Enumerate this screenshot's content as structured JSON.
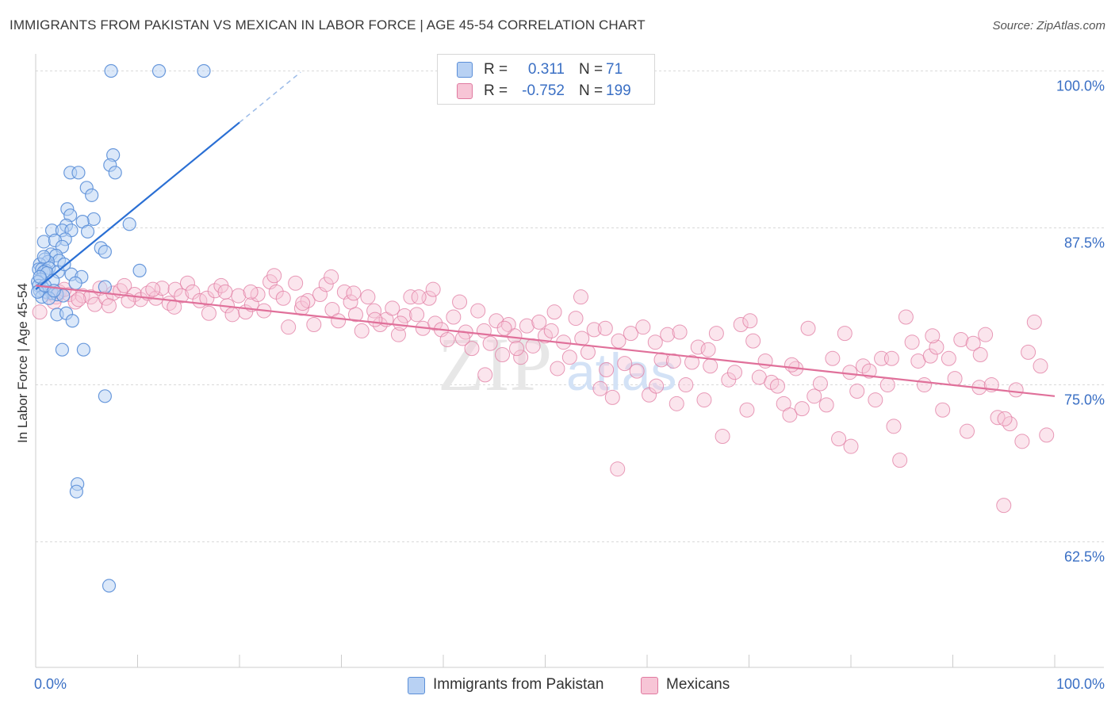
{
  "title": "IMMIGRANTS FROM PAKISTAN VS MEXICAN IN LABOR FORCE | AGE 45-54 CORRELATION CHART",
  "source": "Source: ZipAtlas.com",
  "watermark": {
    "zip": "ZIP",
    "atlas": "atlas"
  },
  "colors": {
    "blue": "#5b8fd8",
    "blue_fill": "#b8d1f3",
    "blue_line": "#2a6fd4",
    "pink": "#e07aa0",
    "pink_fill": "#f7c5d6",
    "pink_line": "#e0709a",
    "tick_label": "#3a6fc4",
    "grid": "#d9d9d9"
  },
  "legend": {
    "rows": [
      {
        "series": "blue",
        "r_label": "R =",
        "r_value": "0.311",
        "n_label": "N =",
        "n_value": "71"
      },
      {
        "series": "pink",
        "r_label": "R =",
        "r_value": "-0.752",
        "n_label": "N =",
        "n_value": "199"
      }
    ]
  },
  "bottom_legend": [
    {
      "series": "blue",
      "label": "Immigrants from Pakistan"
    },
    {
      "series": "pink",
      "label": "Mexicans"
    }
  ],
  "chart_data": {
    "type": "scatter",
    "title": "IMMIGRANTS FROM PAKISTAN VS MEXICAN IN LABOR FORCE | AGE 45-54 CORRELATION CHART",
    "xlabel": "",
    "ylabel": "In Labor Force | Age 45-54",
    "xlim": [
      0,
      100
    ],
    "ylim": [
      52.5,
      100.6
    ],
    "x_tick_labels": [
      "0.0%",
      "100.0%"
    ],
    "y_ticks": [
      100,
      87.5,
      75,
      62.5
    ],
    "y_tick_labels": [
      "100.0%",
      "87.5%",
      "75.0%",
      "62.5%"
    ],
    "series": [
      {
        "name": "Immigrants from Pakistan",
        "color": "blue",
        "r": 0.311,
        "n": 71,
        "trend": {
          "x": [
            0,
            20
          ],
          "y": [
            82.6,
            95.9
          ],
          "dashed_to": [
            26,
            99.9
          ]
        },
        "points": [
          [
            7.4,
            100
          ],
          [
            12.1,
            100
          ],
          [
            16.5,
            100
          ],
          [
            7.6,
            93.3
          ],
          [
            7.3,
            92.5
          ],
          [
            7.8,
            91.9
          ],
          [
            3.4,
            91.9
          ],
          [
            4.2,
            91.9
          ],
          [
            5.0,
            90.7
          ],
          [
            5.5,
            90.1
          ],
          [
            3.1,
            89.0
          ],
          [
            3.4,
            88.5
          ],
          [
            5.7,
            88.2
          ],
          [
            4.6,
            88.0
          ],
          [
            3.0,
            87.7
          ],
          [
            9.2,
            87.8
          ],
          [
            1.6,
            87.3
          ],
          [
            2.6,
            87.3
          ],
          [
            3.5,
            87.3
          ],
          [
            5.1,
            87.2
          ],
          [
            2.9,
            86.6
          ],
          [
            0.8,
            86.4
          ],
          [
            1.9,
            86.5
          ],
          [
            6.4,
            85.9
          ],
          [
            6.8,
            85.6
          ],
          [
            2.6,
            86.0
          ],
          [
            1.5,
            85.4
          ],
          [
            2.0,
            85.3
          ],
          [
            0.9,
            85.0
          ],
          [
            2.3,
            84.9
          ],
          [
            1.2,
            84.8
          ],
          [
            0.4,
            84.6
          ],
          [
            0.3,
            84.2
          ],
          [
            0.6,
            84.2
          ],
          [
            1.0,
            84.1
          ],
          [
            1.3,
            84.3
          ],
          [
            0.8,
            84.0
          ],
          [
            1.1,
            83.9
          ],
          [
            2.2,
            84.0
          ],
          [
            10.2,
            84.1
          ],
          [
            3.5,
            83.8
          ],
          [
            4.5,
            83.6
          ],
          [
            0.5,
            83.4
          ],
          [
            1.7,
            83.3
          ],
          [
            0.2,
            83.2
          ],
          [
            3.9,
            83.1
          ],
          [
            0.3,
            82.9
          ],
          [
            0.7,
            82.7
          ],
          [
            0.4,
            82.5
          ],
          [
            1.0,
            82.4
          ],
          [
            1.6,
            82.3
          ],
          [
            2.1,
            82.2
          ],
          [
            2.7,
            82.1
          ],
          [
            0.6,
            82.0
          ],
          [
            1.3,
            81.9
          ],
          [
            6.8,
            82.8
          ],
          [
            0.2,
            82.4
          ],
          [
            0.9,
            82.9
          ],
          [
            1.8,
            82.5
          ],
          [
            2.1,
            80.6
          ],
          [
            3.0,
            80.7
          ],
          [
            3.6,
            80.1
          ],
          [
            2.6,
            77.8
          ],
          [
            4.7,
            77.8
          ],
          [
            6.8,
            74.1
          ],
          [
            4.1,
            67.1
          ],
          [
            4.0,
            66.5
          ],
          [
            7.2,
            59.0
          ],
          [
            0.4,
            83.6
          ],
          [
            0.8,
            85.2
          ],
          [
            2.8,
            84.6
          ]
        ]
      },
      {
        "name": "Mexicans",
        "color": "pink",
        "r": -0.752,
        "n": 199,
        "trend": {
          "x": [
            0,
            100
          ],
          "y": [
            82.9,
            74.1
          ]
        },
        "points": [
          [
            0.4,
            80.8
          ],
          [
            1.3,
            82.3
          ],
          [
            2.0,
            82.0
          ],
          [
            2.3,
            82.4
          ],
          [
            3.3,
            82.2
          ],
          [
            3.9,
            81.6
          ],
          [
            4.6,
            82.1
          ],
          [
            5.4,
            82.0
          ],
          [
            5.8,
            81.4
          ],
          [
            6.3,
            82.7
          ],
          [
            6.9,
            81.9
          ],
          [
            7.6,
            82.3
          ],
          [
            8.3,
            82.5
          ],
          [
            8.7,
            82.9
          ],
          [
            9.7,
            82.2
          ],
          [
            10.3,
            81.8
          ],
          [
            11.0,
            82.3
          ],
          [
            11.8,
            81.9
          ],
          [
            12.4,
            82.7
          ],
          [
            13.1,
            81.5
          ],
          [
            13.7,
            82.6
          ],
          [
            14.3,
            82.1
          ],
          [
            14.9,
            83.1
          ],
          [
            15.4,
            82.4
          ],
          [
            16.1,
            81.7
          ],
          [
            16.8,
            81.9
          ],
          [
            17.0,
            80.7
          ],
          [
            17.6,
            82.5
          ],
          [
            18.2,
            82.9
          ],
          [
            18.8,
            81.3
          ],
          [
            19.3,
            80.6
          ],
          [
            19.9,
            82.1
          ],
          [
            20.6,
            80.8
          ],
          [
            21.2,
            81.4
          ],
          [
            21.8,
            82.2
          ],
          [
            22.4,
            80.9
          ],
          [
            23.0,
            83.2
          ],
          [
            23.6,
            82.4
          ],
          [
            24.3,
            81.9
          ],
          [
            24.8,
            79.6
          ],
          [
            25.5,
            83.1
          ],
          [
            26.1,
            81.1
          ],
          [
            26.7,
            81.7
          ],
          [
            27.3,
            79.8
          ],
          [
            27.9,
            82.2
          ],
          [
            28.5,
            83.0
          ],
          [
            29.1,
            81.0
          ],
          [
            29.7,
            80.1
          ],
          [
            30.3,
            82.4
          ],
          [
            30.9,
            81.6
          ],
          [
            31.4,
            80.6
          ],
          [
            32.0,
            79.3
          ],
          [
            32.6,
            82.0
          ],
          [
            33.2,
            80.9
          ],
          [
            33.8,
            79.8
          ],
          [
            34.4,
            80.2
          ],
          [
            35.0,
            81.1
          ],
          [
            35.6,
            79.0
          ],
          [
            36.2,
            80.5
          ],
          [
            36.8,
            82.0
          ],
          [
            37.4,
            80.6
          ],
          [
            38.0,
            79.5
          ],
          [
            38.6,
            81.9
          ],
          [
            39.2,
            79.9
          ],
          [
            39.8,
            79.4
          ],
          [
            40.4,
            78.6
          ],
          [
            41.0,
            80.4
          ],
          [
            41.6,
            81.6
          ],
          [
            42.2,
            79.2
          ],
          [
            42.8,
            77.9
          ],
          [
            43.4,
            80.9
          ],
          [
            44.0,
            79.3
          ],
          [
            44.6,
            78.3
          ],
          [
            45.2,
            80.1
          ],
          [
            45.8,
            77.4
          ],
          [
            46.4,
            79.8
          ],
          [
            47.0,
            78.9
          ],
          [
            47.6,
            77.2
          ],
          [
            48.2,
            79.7
          ],
          [
            48.8,
            78.1
          ],
          [
            49.4,
            80.0
          ],
          [
            50.0,
            78.9
          ],
          [
            50.6,
            79.3
          ],
          [
            51.2,
            76.3
          ],
          [
            51.8,
            78.4
          ],
          [
            52.4,
            77.2
          ],
          [
            53.0,
            80.3
          ],
          [
            53.6,
            78.7
          ],
          [
            54.2,
            77.6
          ],
          [
            54.8,
            79.4
          ],
          [
            55.4,
            74.7
          ],
          [
            56.0,
            76.2
          ],
          [
            56.6,
            74.0
          ],
          [
            57.2,
            78.5
          ],
          [
            57.8,
            76.7
          ],
          [
            58.4,
            79.1
          ],
          [
            59.0,
            76.1
          ],
          [
            59.6,
            79.6
          ],
          [
            60.2,
            74.2
          ],
          [
            60.8,
            78.4
          ],
          [
            61.4,
            77.0
          ],
          [
            62.0,
            79.0
          ],
          [
            62.6,
            76.9
          ],
          [
            63.2,
            79.2
          ],
          [
            63.8,
            75.0
          ],
          [
            64.4,
            76.8
          ],
          [
            65.0,
            78.0
          ],
          [
            65.6,
            73.8
          ],
          [
            66.2,
            76.5
          ],
          [
            66.8,
            79.1
          ],
          [
            67.4,
            70.9
          ],
          [
            68.0,
            75.4
          ],
          [
            68.6,
            76.0
          ],
          [
            69.2,
            79.8
          ],
          [
            69.8,
            73.0
          ],
          [
            70.4,
            78.5
          ],
          [
            71.0,
            75.6
          ],
          [
            71.6,
            76.9
          ],
          [
            72.2,
            75.2
          ],
          [
            72.8,
            74.9
          ],
          [
            73.4,
            73.5
          ],
          [
            74.0,
            72.6
          ],
          [
            74.6,
            76.3
          ],
          [
            75.2,
            73.1
          ],
          [
            75.8,
            79.5
          ],
          [
            76.4,
            74.1
          ],
          [
            77.0,
            75.1
          ],
          [
            77.6,
            73.4
          ],
          [
            78.2,
            77.1
          ],
          [
            78.8,
            70.7
          ],
          [
            79.4,
            79.1
          ],
          [
            80.0,
            70.1
          ],
          [
            80.6,
            74.5
          ],
          [
            81.2,
            76.5
          ],
          [
            81.8,
            76.1
          ],
          [
            82.4,
            73.8
          ],
          [
            83.0,
            77.1
          ],
          [
            83.6,
            75.0
          ],
          [
            84.2,
            71.7
          ],
          [
            84.8,
            69.0
          ],
          [
            85.4,
            80.4
          ],
          [
            86.0,
            78.4
          ],
          [
            86.6,
            76.9
          ],
          [
            87.2,
            75.0
          ],
          [
            87.8,
            77.3
          ],
          [
            88.4,
            78.0
          ],
          [
            89.0,
            73.0
          ],
          [
            89.6,
            77.1
          ],
          [
            90.2,
            75.5
          ],
          [
            90.8,
            78.6
          ],
          [
            91.4,
            71.3
          ],
          [
            92.0,
            78.3
          ],
          [
            92.6,
            74.8
          ],
          [
            93.2,
            79.0
          ],
          [
            93.8,
            75.0
          ],
          [
            94.4,
            72.4
          ],
          [
            95.0,
            65.4
          ],
          [
            95.6,
            71.9
          ],
          [
            96.2,
            74.6
          ],
          [
            96.8,
            70.5
          ],
          [
            97.4,
            77.6
          ],
          [
            98.0,
            80.0
          ],
          [
            98.6,
            76.5
          ],
          [
            99.2,
            71.0
          ],
          [
            53.5,
            82.0
          ],
          [
            39.0,
            82.6
          ],
          [
            35.8,
            79.9
          ],
          [
            47.2,
            77.9
          ],
          [
            57.1,
            68.3
          ],
          [
            23.4,
            83.7
          ],
          [
            31.2,
            82.3
          ],
          [
            44.1,
            75.8
          ],
          [
            62.9,
            73.5
          ],
          [
            70.1,
            80.1
          ],
          [
            88.0,
            78.9
          ],
          [
            95.1,
            72.3
          ],
          [
            18.6,
            82.4
          ],
          [
            26.2,
            81.5
          ],
          [
            41.9,
            78.7
          ],
          [
            60.9,
            74.9
          ],
          [
            79.9,
            76.0
          ],
          [
            13.6,
            81.2
          ],
          [
            4.2,
            81.8
          ],
          [
            7.2,
            81.3
          ],
          [
            1.8,
            81.6
          ],
          [
            2.8,
            82.6
          ],
          [
            9.1,
            81.7
          ],
          [
            11.5,
            82.6
          ],
          [
            21.1,
            82.4
          ],
          [
            29.0,
            83.6
          ],
          [
            33.3,
            80.2
          ],
          [
            37.6,
            82.0
          ],
          [
            46.0,
            79.5
          ],
          [
            50.9,
            80.8
          ],
          [
            55.9,
            79.5
          ],
          [
            66.0,
            77.8
          ],
          [
            74.2,
            76.6
          ],
          [
            84.0,
            77.1
          ],
          [
            92.7,
            77.4
          ]
        ]
      }
    ]
  }
}
